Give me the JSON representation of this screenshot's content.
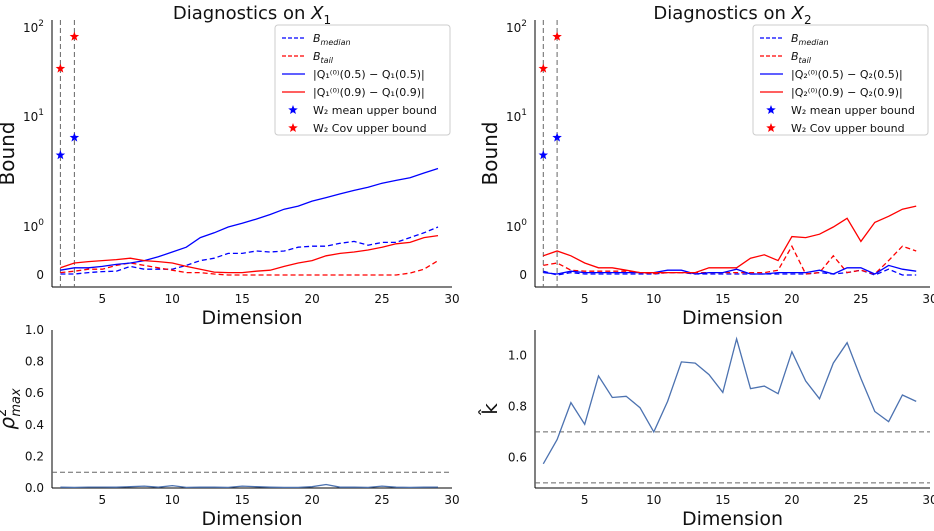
{
  "chart_data": [
    {
      "id": "top-left",
      "type": "line",
      "title_prefix": "Diagnostics on ",
      "title_var": "X",
      "title_sub": "1",
      "xlabel": "Dimension",
      "ylabel": "Bound",
      "yscale": "symlog",
      "xlim": [
        1.4,
        30
      ],
      "xticks": [
        5,
        10,
        15,
        20,
        25,
        30
      ],
      "xtick_labels": [
        "5",
        "10",
        "15",
        "20",
        "25",
        "30"
      ],
      "yticks": [
        0,
        1,
        10,
        100
      ],
      "ytick_label_base": "10",
      "ytick_label_exps": [
        "0",
        "1",
        "2"
      ],
      "ytick_zero_label": "0",
      "vlines": [
        2,
        3
      ],
      "series": [
        {
          "name": "B_median",
          "legend_main": "B",
          "legend_sub": "median",
          "color": "#0000ff",
          "style": "dashed",
          "x": [
            2,
            3,
            4,
            5,
            6,
            7,
            8,
            9,
            10,
            11,
            12,
            13,
            14,
            15,
            16,
            17,
            18,
            19,
            20,
            21,
            22,
            23,
            24,
            25,
            26,
            27,
            28,
            29
          ],
          "y": [
            0.02,
            0.02,
            0.05,
            0.07,
            0.08,
            0.18,
            0.12,
            0.12,
            0.12,
            0.2,
            0.3,
            0.35,
            0.45,
            0.45,
            0.5,
            0.48,
            0.5,
            0.58,
            0.6,
            0.6,
            0.66,
            0.7,
            0.62,
            0.68,
            0.68,
            0.78,
            0.88,
            1.0
          ]
        },
        {
          "name": "B_tail",
          "legend_main": "B",
          "legend_sub": "tail",
          "color": "#ff0000",
          "style": "dashed",
          "x": [
            2,
            3,
            4,
            5,
            6,
            7,
            8,
            9,
            10,
            11,
            12,
            13,
            14,
            15,
            16,
            17,
            18,
            19,
            20,
            21,
            22,
            23,
            24,
            25,
            26,
            27,
            28,
            29
          ],
          "y": [
            0.05,
            0.08,
            0.12,
            0.12,
            0.2,
            0.25,
            0.2,
            0.15,
            0.1,
            0.05,
            0.05,
            0.02,
            0.0,
            0.0,
            0.0,
            0.0,
            0.0,
            0.0,
            0.0,
            0.0,
            0.0,
            0.0,
            0.0,
            0.0,
            0.0,
            0.04,
            0.12,
            0.3
          ]
        },
        {
          "name": "median-diff",
          "legend_text": "|Q₁⁽⁰⁾(0.5) − Q₁(0.5)|",
          "color": "#0000ff",
          "style": "solid",
          "x": [
            2,
            3,
            4,
            5,
            6,
            7,
            8,
            9,
            10,
            11,
            12,
            13,
            14,
            15,
            16,
            17,
            18,
            19,
            20,
            21,
            22,
            23,
            24,
            25,
            26,
            27,
            28,
            29
          ],
          "y": [
            0.1,
            0.15,
            0.15,
            0.18,
            0.22,
            0.25,
            0.3,
            0.38,
            0.48,
            0.58,
            0.78,
            0.88,
            1.0,
            1.08,
            1.18,
            1.3,
            1.45,
            1.55,
            1.72,
            1.85,
            2.0,
            2.15,
            2.3,
            2.5,
            2.65,
            2.8,
            3.1,
            3.4
          ]
        },
        {
          "name": "tail-diff",
          "legend_text": "|Q₁⁽⁰⁾(0.9) − Q₁(0.9)|",
          "color": "#ff0000",
          "style": "solid",
          "x": [
            2,
            3,
            4,
            5,
            6,
            7,
            8,
            9,
            10,
            11,
            12,
            13,
            14,
            15,
            16,
            17,
            18,
            19,
            20,
            21,
            22,
            23,
            24,
            25,
            26,
            27,
            28,
            29
          ],
          "y": [
            0.15,
            0.25,
            0.28,
            0.3,
            0.32,
            0.35,
            0.3,
            0.28,
            0.25,
            0.18,
            0.12,
            0.06,
            0.05,
            0.05,
            0.08,
            0.1,
            0.18,
            0.25,
            0.3,
            0.4,
            0.45,
            0.48,
            0.52,
            0.58,
            0.65,
            0.68,
            0.78,
            0.82
          ]
        }
      ],
      "points": [
        {
          "name": "W2-mean",
          "legend_text": "W₂ mean upper bound",
          "color": "#0000ff",
          "x": [
            2,
            3
          ],
          "y": [
            4.5,
            6.5
          ]
        },
        {
          "name": "W2-cov",
          "legend_text": "W₂ Cov upper bound",
          "color": "#ff0000",
          "x": [
            2,
            3
          ],
          "y": [
            35,
            80
          ]
        }
      ]
    },
    {
      "id": "top-right",
      "type": "line",
      "title_prefix": "Diagnostics on ",
      "title_var": "X",
      "title_sub": "2",
      "xlabel": "Dimension",
      "ylabel": "Bound",
      "yscale": "symlog",
      "xlim": [
        1.4,
        30
      ],
      "xticks": [
        5,
        10,
        15,
        20,
        25,
        30
      ],
      "xtick_labels": [
        "5",
        "10",
        "15",
        "20",
        "25",
        "30"
      ],
      "yticks": [
        0,
        1,
        10,
        100
      ],
      "ytick_label_base": "10",
      "ytick_label_exps": [
        "0",
        "1",
        "2"
      ],
      "ytick_zero_label": "0",
      "vlines": [
        2,
        3
      ],
      "series": [
        {
          "name": "B_median",
          "legend_main": "B",
          "legend_sub": "median",
          "color": "#0000ff",
          "style": "dashed",
          "x": [
            2,
            3,
            4,
            5,
            6,
            7,
            8,
            9,
            10,
            11,
            12,
            13,
            14,
            15,
            16,
            17,
            18,
            19,
            20,
            21,
            22,
            23,
            24,
            25,
            26,
            27,
            28,
            29
          ],
          "y": [
            0.08,
            0.0,
            0.05,
            0.02,
            0.02,
            0.02,
            0.02,
            0.02,
            0.02,
            0.05,
            0.05,
            0.02,
            0.02,
            0.02,
            0.02,
            0.02,
            0.02,
            0.02,
            0.02,
            0.02,
            0.05,
            0.02,
            0.05,
            0.1,
            0.0,
            0.12,
            0.0,
            0.0
          ]
        },
        {
          "name": "B_tail",
          "legend_main": "B",
          "legend_sub": "tail",
          "color": "#ff0000",
          "style": "dashed",
          "x": [
            2,
            3,
            4,
            5,
            6,
            7,
            8,
            9,
            10,
            11,
            12,
            13,
            14,
            15,
            16,
            17,
            18,
            19,
            20,
            21,
            22,
            23,
            24,
            25,
            26,
            27,
            28,
            29
          ],
          "y": [
            0.2,
            0.25,
            0.1,
            0.08,
            0.08,
            0.08,
            0.08,
            0.05,
            0.03,
            0.05,
            0.05,
            0.05,
            0.05,
            0.05,
            0.05,
            0.05,
            0.05,
            0.1,
            0.6,
            0.02,
            0.05,
            0.4,
            0.05,
            0.1,
            0.02,
            0.3,
            0.6,
            0.5
          ]
        },
        {
          "name": "median-diff",
          "legend_text": "|Q₂⁽⁰⁾(0.5) − Q₂(0.5)|",
          "color": "#0000ff",
          "style": "solid",
          "x": [
            2,
            3,
            4,
            5,
            6,
            7,
            8,
            9,
            10,
            11,
            12,
            13,
            14,
            15,
            16,
            17,
            18,
            19,
            20,
            21,
            22,
            23,
            24,
            25,
            26,
            27,
            28,
            29
          ],
          "y": [
            0.05,
            0.02,
            0.08,
            0.05,
            0.05,
            0.05,
            0.05,
            0.05,
            0.05,
            0.1,
            0.1,
            0.02,
            0.05,
            0.05,
            0.12,
            0.02,
            0.02,
            0.05,
            0.05,
            0.05,
            0.1,
            0.02,
            0.15,
            0.15,
            0.02,
            0.2,
            0.12,
            0.08
          ]
        },
        {
          "name": "tail-diff",
          "legend_text": "|Q₂⁽⁰⁾(0.9) − Q₂(0.9)|",
          "color": "#ff0000",
          "style": "solid",
          "x": [
            2,
            3,
            4,
            5,
            6,
            7,
            8,
            9,
            10,
            11,
            12,
            13,
            14,
            15,
            16,
            17,
            18,
            19,
            20,
            21,
            22,
            23,
            24,
            25,
            26,
            27,
            28,
            29
          ],
          "y": [
            0.4,
            0.5,
            0.4,
            0.25,
            0.15,
            0.15,
            0.1,
            0.05,
            0.05,
            0.05,
            0.05,
            0.05,
            0.15,
            0.15,
            0.15,
            0.35,
            0.42,
            0.3,
            0.8,
            0.78,
            0.85,
            1.0,
            1.2,
            0.7,
            1.1,
            1.25,
            1.45,
            1.55
          ]
        }
      ],
      "points": [
        {
          "name": "W2-mean",
          "legend_text": "W₂ mean upper bound",
          "color": "#0000ff",
          "x": [
            2,
            3
          ],
          "y": [
            4.5,
            6.5
          ]
        },
        {
          "name": "W2-cov",
          "legend_text": "W₂ Cov upper bound",
          "color": "#ff0000",
          "x": [
            2,
            3
          ],
          "y": [
            35,
            80
          ]
        }
      ]
    },
    {
      "id": "bottom-left",
      "type": "line",
      "xlabel": "Dimension",
      "ylabel_main": "ρ",
      "ylabel_sup": "2",
      "ylabel_sub": "max",
      "yscale": "linear",
      "xlim": [
        1.4,
        30
      ],
      "ylim": [
        0,
        1.0
      ],
      "xticks": [
        5,
        10,
        15,
        20,
        25,
        30
      ],
      "xtick_labels": [
        "5",
        "10",
        "15",
        "20",
        "25",
        "30"
      ],
      "yticks": [
        0,
        0.2,
        0.4,
        0.6,
        0.8,
        1.0
      ],
      "ytick_labels": [
        "0.0",
        "0.2",
        "0.4",
        "0.6",
        "0.8",
        "1.0"
      ],
      "hlines": [
        0.1
      ],
      "series": [
        {
          "name": "rho2max",
          "color": "#4c72b0",
          "style": "solid",
          "x": [
            2,
            3,
            4,
            5,
            6,
            7,
            8,
            9,
            10,
            11,
            12,
            13,
            14,
            15,
            16,
            17,
            18,
            19,
            20,
            21,
            22,
            23,
            24,
            25,
            26,
            27,
            28,
            29
          ],
          "y": [
            0.005,
            0.004,
            0.006,
            0.006,
            0.005,
            0.008,
            0.012,
            0.005,
            0.015,
            0.004,
            0.006,
            0.005,
            0.004,
            0.012,
            0.008,
            0.005,
            0.004,
            0.004,
            0.008,
            0.022,
            0.005,
            0.006,
            0.004,
            0.012,
            0.005,
            0.004,
            0.005,
            0.006
          ]
        }
      ]
    },
    {
      "id": "bottom-right",
      "type": "line",
      "xlabel": "Dimension",
      "ylabel": "k̂",
      "yscale": "linear",
      "xlim": [
        1.4,
        30
      ],
      "ylim": [
        0.48,
        1.1
      ],
      "xticks": [
        5,
        10,
        15,
        20,
        25,
        30
      ],
      "xtick_labels": [
        "5",
        "10",
        "15",
        "20",
        "25",
        "30"
      ],
      "yticks": [
        0.6,
        0.8,
        1.0
      ],
      "ytick_labels": [
        "0.6",
        "0.8",
        "1.0"
      ],
      "hlines": [
        0.5,
        0.7
      ],
      "series": [
        {
          "name": "khat",
          "color": "#4c72b0",
          "style": "solid",
          "x": [
            2,
            3,
            4,
            5,
            6,
            7,
            8,
            9,
            10,
            11,
            12,
            13,
            14,
            15,
            16,
            17,
            18,
            19,
            20,
            21,
            22,
            23,
            24,
            25,
            26,
            27,
            28,
            29
          ],
          "y": [
            0.575,
            0.67,
            0.815,
            0.73,
            0.92,
            0.835,
            0.84,
            0.795,
            0.7,
            0.82,
            0.975,
            0.97,
            0.925,
            0.855,
            1.065,
            0.87,
            0.88,
            0.85,
            1.015,
            0.9,
            0.83,
            0.97,
            1.05,
            0.91,
            0.78,
            0.74,
            0.845,
            0.82
          ]
        }
      ]
    }
  ]
}
